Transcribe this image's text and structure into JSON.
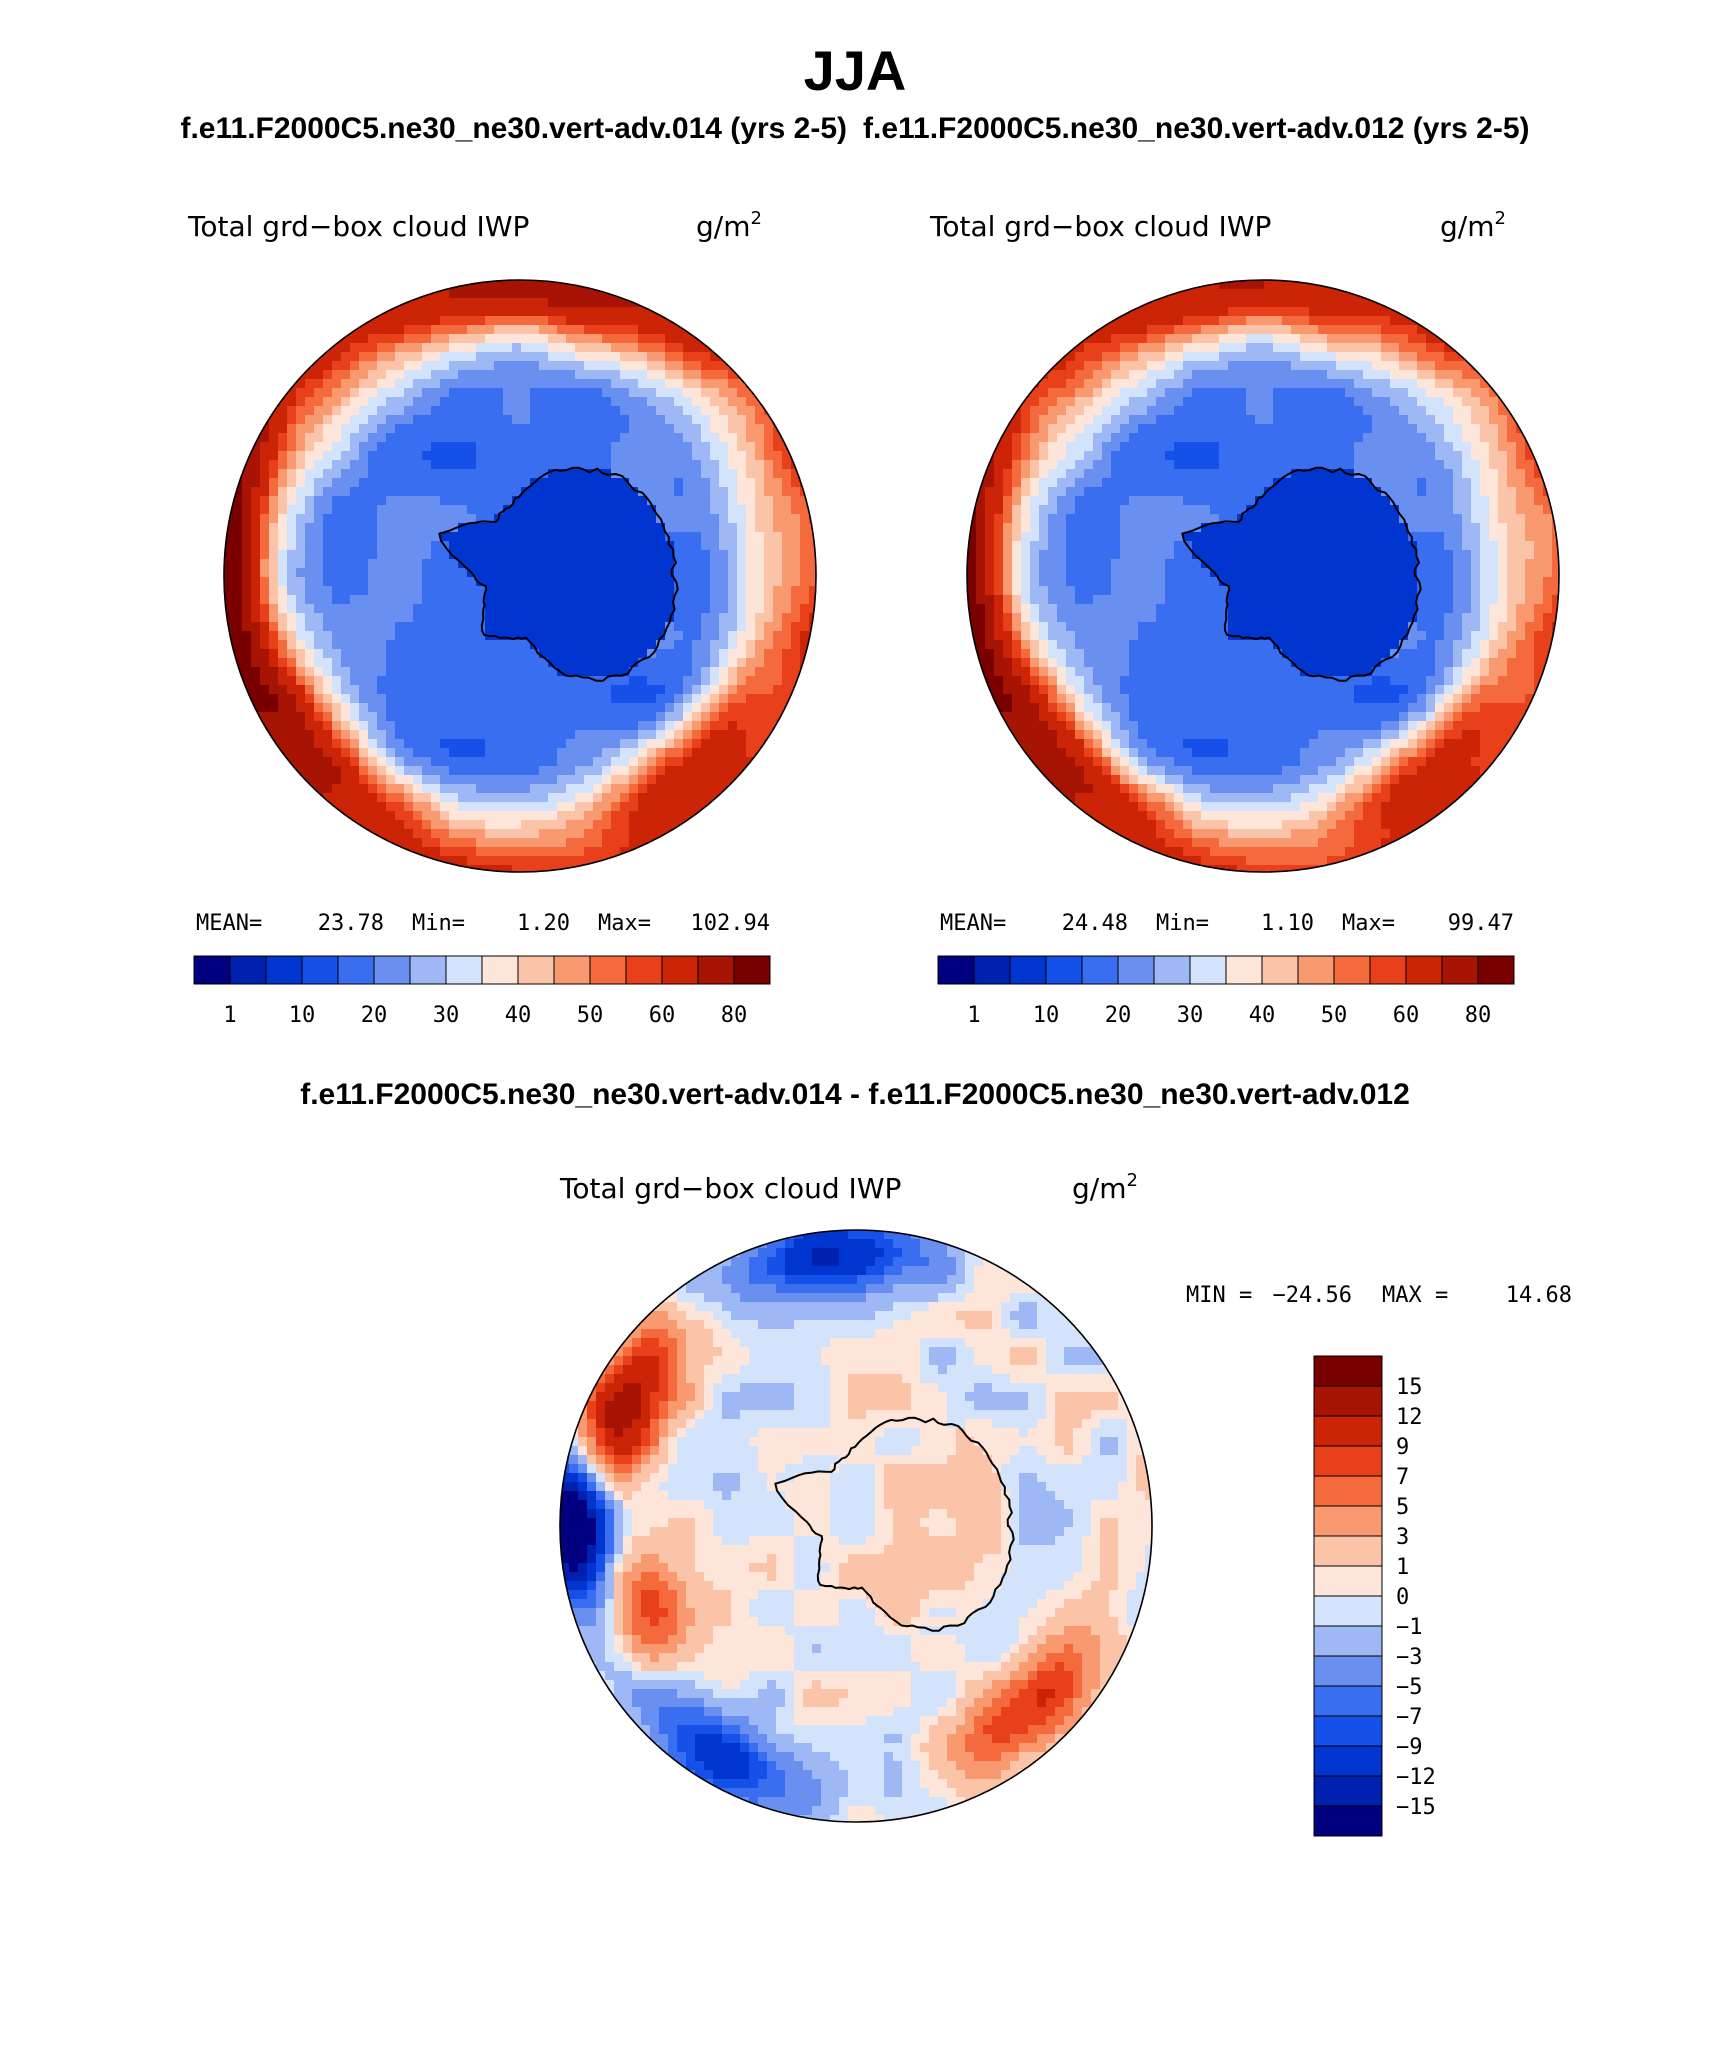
{
  "header": {
    "title": "JJA",
    "case_a": "f.e11.F2000C5.ne30_ne30.vert-adv.014 (yrs 2-5)",
    "case_b": "f.e11.F2000C5.ne30_ne30.vert-adv.012 (yrs 2-5)",
    "diff_title": "f.e11.F2000C5.ne30_ne30.vert-adv.014 - f.e11.F2000C5.ne30_ne30.vert-adv.012"
  },
  "chart_data": [
    {
      "type": "heatmap",
      "projection": "south-polar-stereographic",
      "variable": "Total grd−box cloud IWP",
      "units_base": "g/m",
      "units_exp": "2",
      "stats": {
        "mean_label": "MEAN=",
        "mean": "23.78",
        "min_label": "Min=",
        "min": "1.20",
        "max_label": "Max=",
        "max": "102.94"
      },
      "colorbar": {
        "orientation": "horizontal",
        "tick_labels": [
          "1",
          "10",
          "20",
          "30",
          "40",
          "50",
          "60",
          "80"
        ],
        "colors": [
          "#000080",
          "#0020b0",
          "#0035d0",
          "#1550e8",
          "#3a6ef0",
          "#6990f0",
          "#9eb8f5",
          "#d3e3fb",
          "#fde6d9",
          "#fbc4a8",
          "#f8996f",
          "#f46a3c",
          "#e8401a",
          "#cc2406",
          "#a71404",
          "#7a0000"
        ]
      },
      "field": {
        "ring_mean": 58,
        "land_mean": 6,
        "ocean_mid": 18,
        "hotspots": [
          [
            185,
            1.0,
            30
          ],
          [
            270,
            0.95,
            25
          ],
          [
            45,
            0.85,
            25
          ],
          [
            145,
            0.9,
            25
          ]
        ]
      }
    },
    {
      "type": "heatmap",
      "projection": "south-polar-stereographic",
      "variable": "Total grd−box cloud IWP",
      "units_base": "g/m",
      "units_exp": "2",
      "stats": {
        "mean_label": "MEAN=",
        "mean": "24.48",
        "min_label": "Min=",
        "min": "1.10",
        "max_label": "Max=",
        "max": "99.47"
      },
      "colorbar": {
        "orientation": "horizontal",
        "tick_labels": [
          "1",
          "10",
          "20",
          "30",
          "40",
          "50",
          "60",
          "80"
        ],
        "colors": [
          "#000080",
          "#0020b0",
          "#0035d0",
          "#1550e8",
          "#3a6ef0",
          "#6990f0",
          "#9eb8f5",
          "#d3e3fb",
          "#fde6d9",
          "#fbc4a8",
          "#f8996f",
          "#f46a3c",
          "#e8401a",
          "#cc2406",
          "#a71404",
          "#7a0000"
        ]
      },
      "field": {
        "ring_mean": 56,
        "land_mean": 6,
        "ocean_mid": 18,
        "hotspots": [
          [
            180,
            1.0,
            28
          ],
          [
            265,
            0.95,
            22
          ],
          [
            45,
            0.85,
            25
          ],
          [
            140,
            0.9,
            25
          ]
        ]
      }
    },
    {
      "type": "heatmap",
      "projection": "south-polar-stereographic",
      "variable": "Total grd−box cloud IWP",
      "units_base": "g/m",
      "units_exp": "2",
      "stats": {
        "min_label": "MIN =",
        "min": "−24.56",
        "max_label": "MAX =",
        "max": "14.68"
      },
      "colorbar": {
        "orientation": "vertical",
        "tick_labels": [
          "15",
          "12",
          "9",
          "7",
          "5",
          "3",
          "1",
          "0",
          "−1",
          "−3",
          "−5",
          "−7",
          "−9",
          "−12",
          "−15"
        ],
        "colors": [
          "#7a0000",
          "#a71404",
          "#cc2406",
          "#e8401a",
          "#f46a3c",
          "#f8996f",
          "#fbc4a8",
          "#fde6d9",
          "#d3e3fb",
          "#9eb8f5",
          "#6990f0",
          "#3a6ef0",
          "#1550e8",
          "#0035d0",
          "#0020b0",
          "#000080"
        ]
      },
      "field": {
        "pos_regions": [
          [
            205,
            0.88,
            22,
            14
          ],
          [
            45,
            0.85,
            20,
            10
          ],
          [
            160,
            0.75,
            18,
            8
          ]
        ],
        "neg_regions": [
          [
            180,
            0.95,
            14,
            -24
          ],
          [
            265,
            0.92,
            20,
            -12
          ],
          [
            120,
            0.9,
            20,
            -10
          ]
        ]
      }
    }
  ]
}
